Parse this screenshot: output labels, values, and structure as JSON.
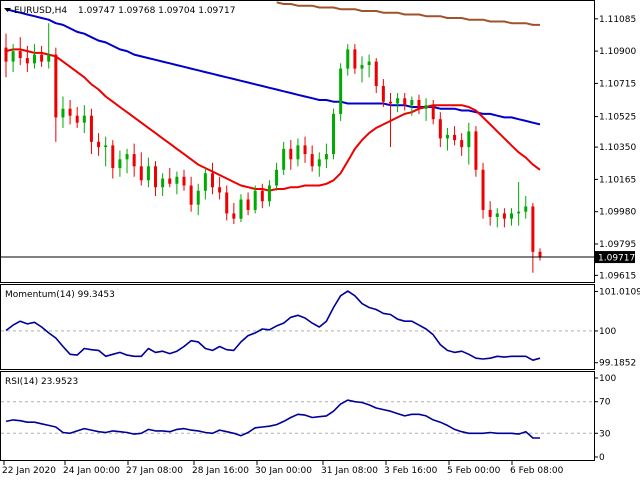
{
  "header": {
    "symbol": "EURUSD,H4",
    "ohlc": "1.09747 1.09768 1.09704 1.09717"
  },
  "colors": {
    "bull": "#00aa00",
    "bear": "#ee0000",
    "ma_fast": "#ee0000",
    "ma_mid": "#0000cc",
    "ma_slow": "#a0522d",
    "indicator": "#000099",
    "grid": "#b0b0b0",
    "price_line": "#000000"
  },
  "chart_data": [
    {
      "type": "candlestick",
      "title": "EURUSD,H4",
      "price_label": "1.09717",
      "y_ticks": [
        "1.11085",
        "1.10900",
        "1.10715",
        "1.10525",
        "1.10350",
        "1.10165",
        "1.09980",
        "1.09795",
        "1.09615"
      ],
      "ylim": [
        1.096,
        1.1117
      ],
      "x_labels": [
        "22 Jan 2020",
        "24 Jan 00:00",
        "27 Jan 08:00",
        "28 Jan 16:00",
        "30 Jan 00:00",
        "31 Jan 08:00",
        "3 Feb 16:00",
        "5 Feb 00:00",
        "6 Feb 08:00"
      ],
      "candles": [
        [
          1.1092,
          1.11,
          1.1075,
          1.1084
        ],
        [
          1.1084,
          1.1094,
          1.1078,
          1.109
        ],
        [
          1.109,
          1.1098,
          1.1082,
          1.1086
        ],
        [
          1.1086,
          1.1093,
          1.1078,
          1.1083
        ],
        [
          1.1083,
          1.1094,
          1.108,
          1.1088
        ],
        [
          1.1088,
          1.1093,
          1.1081,
          1.1084
        ],
        [
          1.1084,
          1.1106,
          1.108,
          1.1088
        ],
        [
          1.1088,
          1.1092,
          1.1038,
          1.1052
        ],
        [
          1.1052,
          1.1064,
          1.1046,
          1.1057
        ],
        [
          1.1057,
          1.1062,
          1.1048,
          1.1053
        ],
        [
          1.1053,
          1.1058,
          1.1046,
          1.1049
        ],
        [
          1.1049,
          1.1059,
          1.1043,
          1.1053
        ],
        [
          1.1053,
          1.1057,
          1.1031,
          1.1038
        ],
        [
          1.1038,
          1.1043,
          1.103,
          1.1035
        ],
        [
          1.1035,
          1.1041,
          1.1024,
          1.1036
        ],
        [
          1.1036,
          1.1039,
          1.1017,
          1.1023
        ],
        [
          1.1023,
          1.1033,
          1.1018,
          1.1028
        ],
        [
          1.1028,
          1.1034,
          1.102,
          1.1031
        ],
        [
          1.1031,
          1.1037,
          1.1018,
          1.1024
        ],
        [
          1.1024,
          1.1032,
          1.1013,
          1.1016
        ],
        [
          1.1016,
          1.1029,
          1.1012,
          1.1024
        ],
        [
          1.1024,
          1.1027,
          1.1007,
          1.1012
        ],
        [
          1.1012,
          1.102,
          1.1007,
          1.1017
        ],
        [
          1.1017,
          1.1023,
          1.1012,
          1.1014
        ],
        [
          1.1014,
          1.1021,
          1.1008,
          1.1018
        ],
        [
          1.1018,
          1.1022,
          1.101,
          1.1013
        ],
        [
          1.1013,
          1.1018,
          1.0998,
          1.1002
        ],
        [
          1.1002,
          1.1014,
          1.0996,
          1.101
        ],
        [
          1.101,
          1.1023,
          1.1005,
          1.102
        ],
        [
          1.102,
          1.1026,
          1.1008,
          1.1012
        ],
        [
          1.1012,
          1.1018,
          1.1005,
          1.1009
        ],
        [
          1.1009,
          1.1013,
          1.0993,
          1.0997
        ],
        [
          1.0997,
          1.1003,
          1.0991,
          1.0994
        ],
        [
          1.0994,
          1.1008,
          1.0992,
          1.1005
        ],
        [
          1.1005,
          1.1009,
          1.0996,
          1.0999
        ],
        [
          1.0999,
          1.1013,
          1.0997,
          1.101
        ],
        [
          1.101,
          1.1014,
          1.1,
          1.1004
        ],
        [
          1.1004,
          1.1016,
          1.1001,
          1.1013
        ],
        [
          1.1013,
          1.1026,
          1.101,
          1.1022
        ],
        [
          1.1022,
          1.1038,
          1.1019,
          1.1034
        ],
        [
          1.1034,
          1.1039,
          1.1022,
          1.1028
        ],
        [
          1.1028,
          1.104,
          1.1024,
          1.1036
        ],
        [
          1.1036,
          1.1041,
          1.1026,
          1.1031
        ],
        [
          1.1031,
          1.1036,
          1.1021,
          1.1024
        ],
        [
          1.1024,
          1.1032,
          1.1018,
          1.1028
        ],
        [
          1.1028,
          1.1037,
          1.1023,
          1.1031
        ],
        [
          1.1031,
          1.1057,
          1.1028,
          1.1054
        ],
        [
          1.1054,
          1.1083,
          1.105,
          1.108
        ],
        [
          1.108,
          1.1094,
          1.1076,
          1.1091
        ],
        [
          1.1091,
          1.1094,
          1.1077,
          1.108
        ],
        [
          1.108,
          1.1087,
          1.1072,
          1.1082
        ],
        [
          1.1082,
          1.1088,
          1.1075,
          1.1084
        ],
        [
          1.1084,
          1.1086,
          1.1066,
          1.107
        ],
        [
          1.107,
          1.1074,
          1.1058,
          1.1061
        ],
        [
          1.1061,
          1.1066,
          1.1035,
          1.106
        ],
        [
          1.106,
          1.1066,
          1.1055,
          1.1063
        ],
        [
          1.1063,
          1.1066,
          1.1056,
          1.1059
        ],
        [
          1.1059,
          1.1064,
          1.1053,
          1.1062
        ],
        [
          1.1062,
          1.1065,
          1.1054,
          1.1057
        ],
        [
          1.1057,
          1.1063,
          1.105,
          1.1059
        ],
        [
          1.1059,
          1.1062,
          1.1048,
          1.1051
        ],
        [
          1.1051,
          1.1055,
          1.1035,
          1.104
        ],
        [
          1.104,
          1.1046,
          1.1033,
          1.1042
        ],
        [
          1.1042,
          1.1047,
          1.1036,
          1.1039
        ],
        [
          1.1039,
          1.1043,
          1.103,
          1.1035
        ],
        [
          1.1035,
          1.1049,
          1.1025,
          1.1044
        ],
        [
          1.1044,
          1.1047,
          1.1018,
          1.1022
        ],
        [
          1.1022,
          1.1026,
          1.0994,
          1.0999
        ],
        [
          1.0999,
          1.1004,
          1.099,
          1.0995
        ],
        [
          1.0995,
          1.1,
          1.0989,
          1.0997
        ],
        [
          1.0997,
          1.1,
          1.0989,
          1.0994
        ],
        [
          1.0994,
          1.1,
          1.099,
          1.0997
        ],
        [
          1.0997,
          1.1015,
          1.099,
          1.0998
        ],
        [
          1.0998,
          1.1007,
          1.0994,
          1.1001
        ],
        [
          1.1001,
          1.1003,
          1.0963,
          1.0975
        ],
        [
          1.0975,
          1.0977,
          1.097,
          1.0972
        ]
      ],
      "ma_fast": [
        1.109,
        1.1091,
        1.1091,
        1.109,
        1.1089,
        1.1089,
        1.1088,
        1.1087,
        1.1084,
        1.1081,
        1.1078,
        1.1075,
        1.1071,
        1.1068,
        1.1064,
        1.1061,
        1.1058,
        1.1055,
        1.1052,
        1.1049,
        1.1046,
        1.1043,
        1.104,
        1.1037,
        1.1034,
        1.1031,
        1.1028,
        1.1025,
        1.1023,
        1.1021,
        1.1019,
        1.1017,
        1.1015,
        1.1013,
        1.1012,
        1.1011,
        1.1011,
        1.101,
        1.1011,
        1.1011,
        1.1012,
        1.1012,
        1.1013,
        1.1013,
        1.1013,
        1.1014,
        1.1016,
        1.102,
        1.1027,
        1.1034,
        1.1039,
        1.1043,
        1.1046,
        1.1048,
        1.105,
        1.1052,
        1.1054,
        1.1055,
        1.1057,
        1.1058,
        1.1059,
        1.1059,
        1.1059,
        1.1059,
        1.1059,
        1.1058,
        1.1056,
        1.1052,
        1.1048,
        1.1044,
        1.104,
        1.1036,
        1.1032,
        1.1029,
        1.1025,
        1.1022
      ],
      "ma_mid": [
        1.1114,
        1.1113,
        1.1112,
        1.1111,
        1.111,
        1.1109,
        1.1108,
        1.1106,
        1.1105,
        1.1103,
        1.1101,
        1.11,
        1.1098,
        1.1096,
        1.1095,
        1.1093,
        1.1091,
        1.109,
        1.1088,
        1.1087,
        1.1086,
        1.1085,
        1.1084,
        1.1083,
        1.1082,
        1.1081,
        1.108,
        1.1079,
        1.1078,
        1.1077,
        1.1076,
        1.1075,
        1.1074,
        1.1073,
        1.1072,
        1.1071,
        1.107,
        1.1069,
        1.1068,
        1.1067,
        1.1066,
        1.1065,
        1.1064,
        1.1063,
        1.1062,
        1.1062,
        1.1061,
        1.1061,
        1.106,
        1.106,
        1.106,
        1.106,
        1.106,
        1.106,
        1.1059,
        1.1059,
        1.1059,
        1.1058,
        1.1058,
        1.1058,
        1.1058,
        1.1057,
        1.1057,
        1.1057,
        1.1056,
        1.1056,
        1.1055,
        1.1054,
        1.1054,
        1.1053,
        1.1052,
        1.1052,
        1.1051,
        1.105,
        1.1049,
        1.1048
      ],
      "ma_slow": [
        null,
        null,
        null,
        null,
        null,
        null,
        null,
        null,
        null,
        null,
        null,
        null,
        null,
        null,
        null,
        null,
        null,
        null,
        null,
        null,
        null,
        null,
        null,
        null,
        null,
        null,
        null,
        null,
        null,
        null,
        null,
        null,
        null,
        null,
        null,
        null,
        null,
        null,
        1.1118,
        1.1117,
        1.1117,
        1.1116,
        1.1116,
        1.1116,
        1.1115,
        1.1115,
        1.1115,
        1.1114,
        1.1114,
        1.1114,
        1.1113,
        1.1113,
        1.1113,
        1.1112,
        1.1112,
        1.1112,
        1.1111,
        1.1111,
        1.1111,
        1.111,
        1.111,
        1.111,
        1.1109,
        1.1109,
        1.1109,
        1.1108,
        1.1108,
        1.1108,
        1.1107,
        1.1107,
        1.1107,
        1.1106,
        1.1106,
        1.1106,
        1.1105,
        1.1105
      ]
    },
    {
      "type": "line",
      "title": "Momentum(14) 99.3453",
      "y_ticks": [
        "101.0109",
        "100",
        "99.1852"
      ],
      "ylim": [
        99.05,
        101.1
      ],
      "ref_level": 100,
      "values": [
        100.01,
        100.15,
        100.25,
        100.18,
        100.22,
        100.1,
        99.95,
        99.82,
        99.6,
        99.4,
        99.38,
        99.55,
        99.52,
        99.5,
        99.35,
        99.4,
        99.45,
        99.38,
        99.35,
        99.35,
        99.55,
        99.45,
        99.48,
        99.42,
        99.48,
        99.6,
        99.75,
        99.72,
        99.55,
        99.5,
        99.6,
        99.52,
        99.5,
        99.72,
        99.88,
        99.95,
        100.05,
        100.03,
        100.13,
        100.2,
        100.35,
        100.4,
        100.33,
        100.2,
        100.1,
        100.25,
        100.6,
        100.9,
        101.02,
        100.9,
        100.7,
        100.6,
        100.55,
        100.45,
        100.42,
        100.3,
        100.25,
        100.25,
        100.15,
        100.05,
        99.9,
        99.65,
        99.5,
        99.45,
        99.48,
        99.4,
        99.3,
        99.28,
        99.3,
        99.35,
        99.33,
        99.35,
        99.35,
        99.35,
        99.25,
        99.3
      ]
    },
    {
      "type": "line",
      "title": "RSI(14) 23.9523",
      "y_ticks": [
        "100",
        "70",
        "30",
        "0"
      ],
      "ylim": [
        0,
        100
      ],
      "levels": [
        70,
        30
      ],
      "values": [
        45,
        47,
        46,
        44,
        44,
        42,
        40,
        38,
        31,
        30,
        33,
        36,
        34,
        32,
        31,
        33,
        32,
        31,
        29,
        30,
        35,
        33,
        33,
        32,
        35,
        36,
        34,
        33,
        31,
        30,
        34,
        32,
        30,
        27,
        31,
        37,
        38,
        39,
        41,
        45,
        50,
        54,
        53,
        50,
        51,
        52,
        58,
        67,
        72,
        70,
        69,
        66,
        62,
        60,
        58,
        55,
        52,
        54,
        54,
        52,
        47,
        44,
        40,
        35,
        32,
        30,
        30,
        30,
        31,
        30,
        30,
        30,
        29,
        32,
        24,
        24
      ]
    }
  ]
}
